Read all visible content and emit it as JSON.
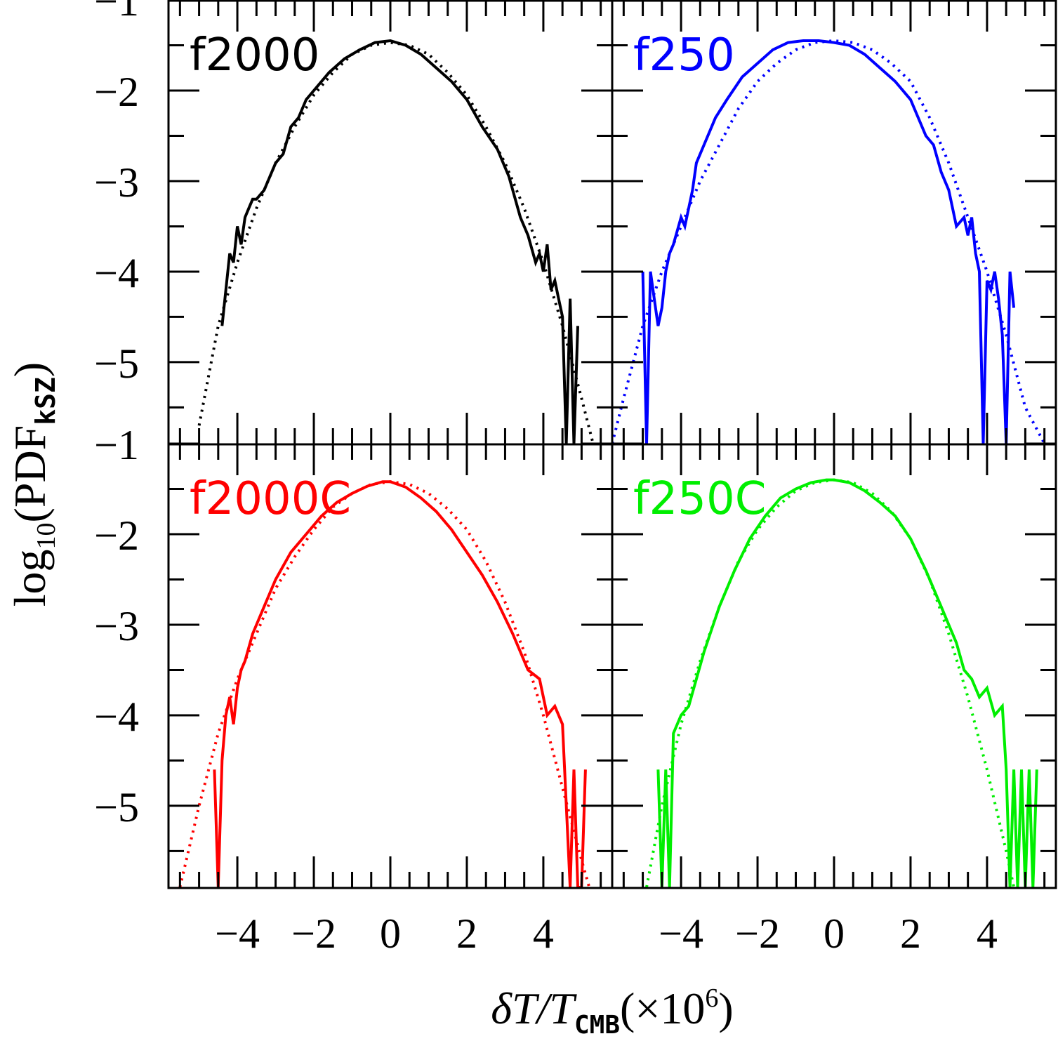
{
  "figure": {
    "ylabel_main": "log",
    "ylabel_sub": "10",
    "ylabel_open": "(PDF",
    "ylabel_sub2": "kSZ",
    "ylabel_close": ")",
    "xlabel_main": "δT/T",
    "xlabel_sub": "CMB",
    "xlabel_tail": "(×10",
    "xlabel_sup": "6",
    "xlabel_close": ")"
  },
  "chart_data": [
    {
      "type": "line",
      "panel": "top-left",
      "label": "f2000",
      "color": "#000000",
      "xlim": [
        -5.8,
        5.8
      ],
      "ylim": [
        -5.9,
        -1
      ],
      "xticks": [
        -4,
        -2,
        0,
        2,
        4
      ],
      "xtick_labels": [
        "−4",
        "−2",
        "0",
        "2",
        "4"
      ],
      "yticks": [
        -1,
        -2,
        -3,
        -4,
        -5
      ],
      "ytick_labels": [
        "−1",
        "−2",
        "−3",
        "−4",
        "−5"
      ],
      "series": [
        {
          "style": "solid",
          "x": [
            -4.4,
            -4.2,
            -4.1,
            -4.0,
            -3.9,
            -3.8,
            -3.7,
            -3.6,
            -3.5,
            -3.3,
            -3.0,
            -2.8,
            -2.6,
            -2.4,
            -2.2,
            -2.0,
            -1.6,
            -1.2,
            -0.8,
            -0.4,
            0.0,
            0.4,
            0.8,
            1.2,
            1.6,
            2.0,
            2.4,
            2.8,
            3.1,
            3.4,
            3.6,
            3.8,
            3.9,
            4.0,
            4.1,
            4.2,
            4.3,
            4.4,
            4.5,
            4.6,
            4.7,
            4.8,
            4.9
          ],
          "y": [
            -4.6,
            -3.8,
            -3.9,
            -3.5,
            -3.7,
            -3.4,
            -3.3,
            -3.2,
            -3.2,
            -3.1,
            -2.8,
            -2.7,
            -2.4,
            -2.3,
            -2.1,
            -2.0,
            -1.8,
            -1.65,
            -1.55,
            -1.47,
            -1.45,
            -1.5,
            -1.6,
            -1.75,
            -1.9,
            -2.1,
            -2.4,
            -2.65,
            -2.95,
            -3.4,
            -3.6,
            -3.9,
            -3.8,
            -4.0,
            -3.7,
            -4.2,
            -4.1,
            -4.3,
            -4.5,
            -5.9,
            -4.3,
            -5.9,
            -4.6
          ]
        },
        {
          "style": "dotted",
          "x": [
            -5.0,
            -4.5,
            -4.0,
            -3.5,
            -3.0,
            -2.5,
            -2.0,
            -1.5,
            -1.0,
            -0.5,
            0.0,
            0.5,
            1.0,
            1.5,
            2.0,
            2.5,
            3.0,
            3.5,
            4.0,
            4.5,
            5.0,
            5.3
          ],
          "y": [
            -5.7,
            -4.6,
            -3.9,
            -3.3,
            -2.8,
            -2.4,
            -2.05,
            -1.8,
            -1.6,
            -1.5,
            -1.47,
            -1.5,
            -1.6,
            -1.8,
            -2.05,
            -2.4,
            -2.8,
            -3.3,
            -3.9,
            -4.6,
            -5.4,
            -5.9
          ]
        }
      ]
    },
    {
      "type": "line",
      "panel": "top-right",
      "label": "f250",
      "color": "#0000ff",
      "xlim": [
        -5.8,
        5.8
      ],
      "ylim": [
        -5.9,
        -1
      ],
      "xticks": [
        -4,
        -2,
        0,
        2,
        4
      ],
      "xtick_labels": [
        "−4",
        "−2",
        "0",
        "2",
        "4"
      ],
      "yticks": [
        -1,
        -2,
        -3,
        -4,
        -5
      ],
      "ytick_labels": [
        "−1",
        "−2",
        "−3",
        "−4",
        "−5"
      ],
      "series": [
        {
          "style": "solid",
          "x": [
            -5.0,
            -4.9,
            -4.8,
            -4.7,
            -4.6,
            -4.5,
            -4.4,
            -4.3,
            -4.2,
            -4.0,
            -3.9,
            -3.7,
            -3.6,
            -3.4,
            -3.1,
            -2.8,
            -2.4,
            -2.0,
            -1.6,
            -1.2,
            -0.8,
            -0.4,
            0.0,
            0.4,
            0.8,
            1.2,
            1.6,
            2.0,
            2.4,
            2.6,
            2.8,
            3.0,
            3.2,
            3.4,
            3.5,
            3.6,
            3.7,
            3.8,
            3.9,
            4.0,
            4.1,
            4.2,
            4.3,
            4.4,
            4.5,
            4.6,
            4.7
          ],
          "y": [
            -4.0,
            -5.9,
            -4.0,
            -4.3,
            -4.6,
            -4.4,
            -4.0,
            -3.8,
            -3.7,
            -3.4,
            -3.5,
            -3.1,
            -2.8,
            -2.6,
            -2.3,
            -2.1,
            -1.85,
            -1.7,
            -1.55,
            -1.47,
            -1.45,
            -1.45,
            -1.47,
            -1.5,
            -1.6,
            -1.75,
            -1.9,
            -2.1,
            -2.5,
            -2.6,
            -2.9,
            -3.1,
            -3.5,
            -3.4,
            -3.6,
            -3.4,
            -3.8,
            -4.0,
            -5.9,
            -4.1,
            -4.2,
            -4.0,
            -4.3,
            -4.7,
            -5.9,
            -4.0,
            -4.4
          ]
        },
        {
          "style": "dotted",
          "x": [
            -5.8,
            -5.5,
            -5.0,
            -4.5,
            -4.0,
            -3.5,
            -3.0,
            -2.5,
            -2.0,
            -1.5,
            -1.0,
            -0.5,
            0.0,
            0.5,
            1.0,
            1.5,
            2.0,
            2.5,
            3.0,
            3.5,
            4.0,
            4.5,
            5.0,
            5.5
          ],
          "y": [
            -5.9,
            -5.4,
            -4.6,
            -4.0,
            -3.5,
            -3.0,
            -2.6,
            -2.2,
            -1.9,
            -1.7,
            -1.55,
            -1.47,
            -1.45,
            -1.47,
            -1.55,
            -1.7,
            -1.9,
            -2.3,
            -2.8,
            -3.4,
            -4.0,
            -4.7,
            -5.5,
            -5.9
          ]
        }
      ]
    },
    {
      "type": "line",
      "panel": "bottom-left",
      "label": "f2000C",
      "color": "#ff0000",
      "xlim": [
        -5.8,
        5.8
      ],
      "ylim": [
        -5.9,
        -1
      ],
      "xticks": [
        -4,
        -2,
        0,
        2,
        4
      ],
      "xtick_labels": [
        "−4",
        "−2",
        "0",
        "2",
        "4"
      ],
      "yticks": [
        -1,
        -2,
        -3,
        -4,
        -5
      ],
      "ytick_labels": [
        "−1",
        "−2",
        "−3",
        "−4",
        "−5"
      ],
      "series": [
        {
          "style": "solid",
          "x": [
            -4.6,
            -4.5,
            -4.4,
            -4.3,
            -4.2,
            -4.1,
            -4.0,
            -3.9,
            -3.8,
            -3.6,
            -3.3,
            -3.0,
            -2.6,
            -2.2,
            -1.8,
            -1.4,
            -1.0,
            -0.6,
            -0.2,
            0.0,
            0.4,
            0.8,
            1.2,
            1.6,
            2.0,
            2.4,
            2.8,
            3.2,
            3.6,
            3.9,
            4.1,
            4.3,
            4.5,
            4.7,
            4.8,
            4.9,
            5.0,
            5.1
          ],
          "y": [
            -4.6,
            -5.9,
            -4.5,
            -4.0,
            -3.8,
            -4.1,
            -3.7,
            -3.5,
            -3.4,
            -3.1,
            -2.8,
            -2.5,
            -2.2,
            -2.0,
            -1.8,
            -1.65,
            -1.55,
            -1.47,
            -1.42,
            -1.42,
            -1.48,
            -1.6,
            -1.75,
            -1.95,
            -2.2,
            -2.45,
            -2.75,
            -3.1,
            -3.5,
            -3.6,
            -4.0,
            -3.9,
            -4.1,
            -5.9,
            -4.6,
            -5.9,
            -5.9,
            -4.6
          ]
        },
        {
          "style": "dotted",
          "x": [
            -5.5,
            -5.0,
            -4.5,
            -4.0,
            -3.5,
            -3.0,
            -2.5,
            -2.0,
            -1.5,
            -1.0,
            -0.5,
            0.0,
            0.5,
            1.0,
            1.5,
            2.0,
            2.5,
            3.0,
            3.5,
            4.0,
            4.5,
            5.0,
            5.2
          ],
          "y": [
            -5.9,
            -5.0,
            -4.2,
            -3.6,
            -3.1,
            -2.6,
            -2.25,
            -1.95,
            -1.7,
            -1.55,
            -1.45,
            -1.42,
            -1.45,
            -1.55,
            -1.72,
            -1.95,
            -2.3,
            -2.75,
            -3.3,
            -4.0,
            -4.8,
            -5.6,
            -5.9
          ]
        }
      ]
    },
    {
      "type": "line",
      "panel": "bottom-right",
      "label": "f250C",
      "color": "#00ee00",
      "xlim": [
        -5.8,
        5.8
      ],
      "ylim": [
        -5.9,
        -1
      ],
      "xticks": [
        -4,
        -2,
        0,
        2,
        4
      ],
      "xtick_labels": [
        "−4",
        "−2",
        "0",
        "2",
        "4"
      ],
      "yticks": [
        -1,
        -2,
        -3,
        -4,
        -5
      ],
      "ytick_labels": [
        "−1",
        "−2",
        "−3",
        "−4",
        "−5"
      ],
      "series": [
        {
          "style": "solid",
          "x": [
            -4.6,
            -4.5,
            -4.4,
            -4.3,
            -4.2,
            -4.0,
            -3.8,
            -3.6,
            -3.4,
            -3.0,
            -2.6,
            -2.2,
            -1.8,
            -1.4,
            -1.0,
            -0.6,
            -0.2,
            0.0,
            0.4,
            0.8,
            1.2,
            1.6,
            2.0,
            2.4,
            2.8,
            3.0,
            3.2,
            3.4,
            3.6,
            3.8,
            4.0,
            4.2,
            4.4,
            4.5,
            4.6,
            4.7,
            4.8,
            4.9,
            5.0,
            5.1,
            5.2,
            5.3
          ],
          "y": [
            -4.6,
            -5.9,
            -4.6,
            -5.9,
            -4.2,
            -4.0,
            -3.9,
            -3.6,
            -3.3,
            -2.8,
            -2.4,
            -2.05,
            -1.8,
            -1.6,
            -1.5,
            -1.43,
            -1.4,
            -1.4,
            -1.43,
            -1.52,
            -1.65,
            -1.8,
            -2.05,
            -2.4,
            -2.8,
            -3.0,
            -3.2,
            -3.5,
            -3.6,
            -3.8,
            -3.7,
            -4.0,
            -3.9,
            -4.6,
            -5.9,
            -4.6,
            -5.9,
            -4.6,
            -5.9,
            -4.6,
            -5.9,
            -4.6
          ]
        },
        {
          "style": "dotted",
          "x": [
            -4.9,
            -4.5,
            -4.0,
            -3.5,
            -3.0,
            -2.5,
            -2.0,
            -1.5,
            -1.0,
            -0.5,
            0.0,
            0.5,
            1.0,
            1.5,
            2.0,
            2.5,
            3.0,
            3.5,
            4.0,
            4.5,
            4.7
          ],
          "y": [
            -5.9,
            -5.0,
            -4.1,
            -3.4,
            -2.8,
            -2.3,
            -1.95,
            -1.7,
            -1.52,
            -1.43,
            -1.4,
            -1.43,
            -1.55,
            -1.75,
            -2.05,
            -2.5,
            -3.1,
            -3.8,
            -4.6,
            -5.5,
            -5.9
          ]
        }
      ]
    }
  ]
}
